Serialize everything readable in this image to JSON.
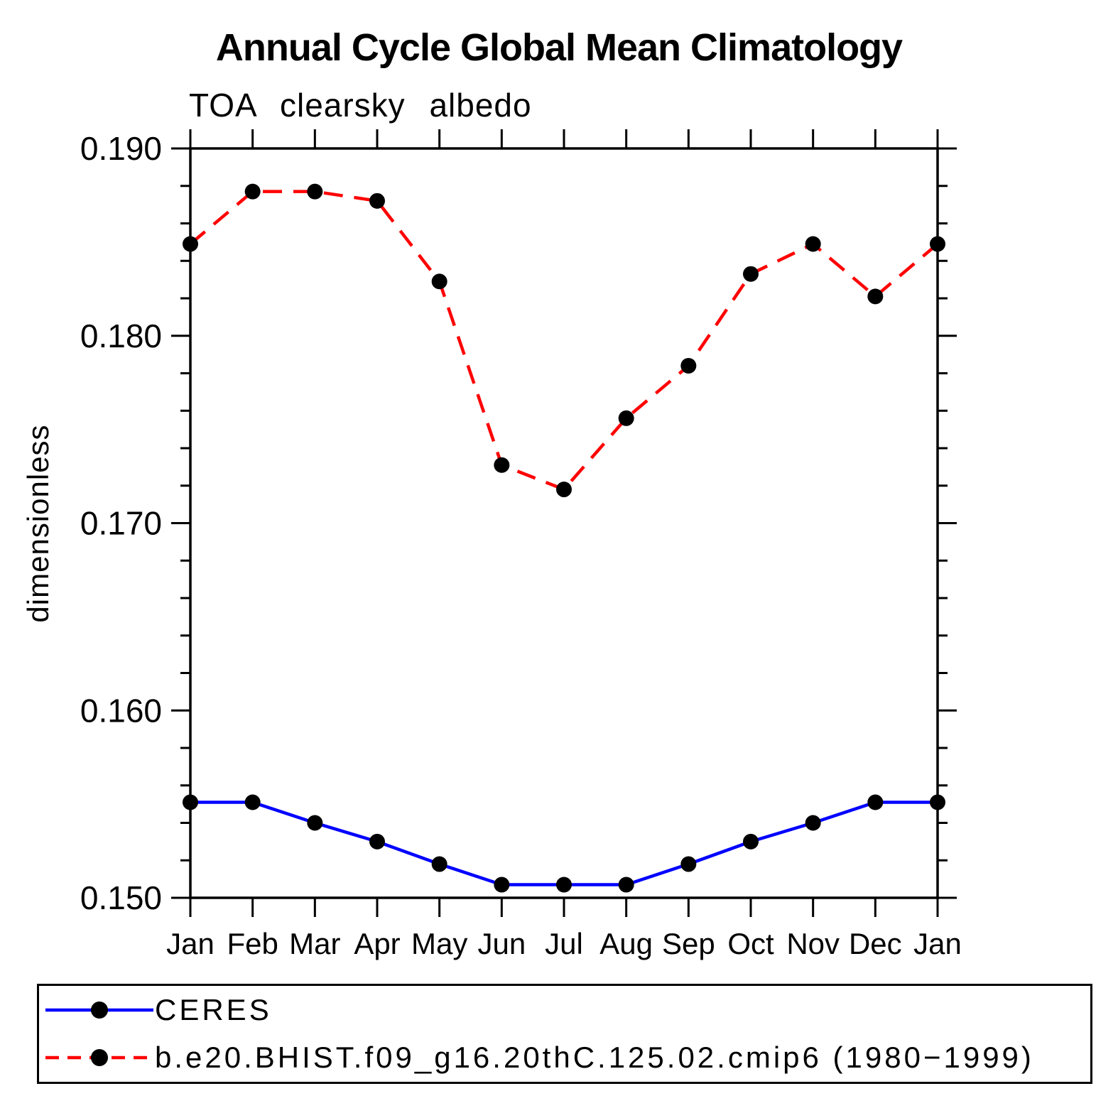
{
  "page": {
    "title": "Annual Cycle Global Mean Climatology",
    "subtitle": "TOA clearsky albedo",
    "y_axis_label": "dimensionless"
  },
  "legend": {
    "entries": [
      {
        "label": "CERES",
        "color": "#0000ff",
        "style": "solid",
        "marker_color": "#000000"
      },
      {
        "label": "b.e20.BHIST.f09_g16.20thC.125.02.cmip6 (1980−1999)",
        "color": "#ff0000",
        "style": "dashed",
        "marker_color": "#000000"
      }
    ]
  },
  "chart_data": {
    "type": "line",
    "title": "Annual Cycle Global Mean Climatology",
    "subtitle": "TOA clearsky albedo",
    "xlabel": "",
    "ylabel": "dimensionless",
    "categories": [
      "Jan",
      "Feb",
      "Mar",
      "Apr",
      "May",
      "Jun",
      "Jul",
      "Aug",
      "Sep",
      "Oct",
      "Nov",
      "Dec",
      "Jan"
    ],
    "series": [
      {
        "name": "CERES",
        "color": "#0000ff",
        "line_style": "solid",
        "marker": "filled-circle",
        "marker_color": "#000000",
        "values": [
          0.1551,
          0.1551,
          0.154,
          0.153,
          0.1518,
          0.1507,
          0.1507,
          0.1507,
          0.1518,
          0.153,
          0.154,
          0.1551,
          0.1551
        ]
      },
      {
        "name": "b.e20.BHIST.f09_g16.20thC.125.02.cmip6 (1980−1999)",
        "color": "#ff0000",
        "line_style": "dashed",
        "marker": "filled-circle",
        "marker_color": "#000000",
        "values": [
          0.1849,
          0.1877,
          0.1877,
          0.1872,
          0.1829,
          0.1731,
          0.1718,
          0.1756,
          0.1784,
          0.1833,
          0.1849,
          0.1821,
          0.1849
        ]
      }
    ],
    "ylim": [
      0.15,
      0.19
    ],
    "ytick_major_step": 0.01,
    "ytick_minor_step": 0.002,
    "ytick_label_decimals": 3,
    "grid": false,
    "tick_direction": "out",
    "mirrored_axes": true,
    "legend_position": "bottom"
  }
}
